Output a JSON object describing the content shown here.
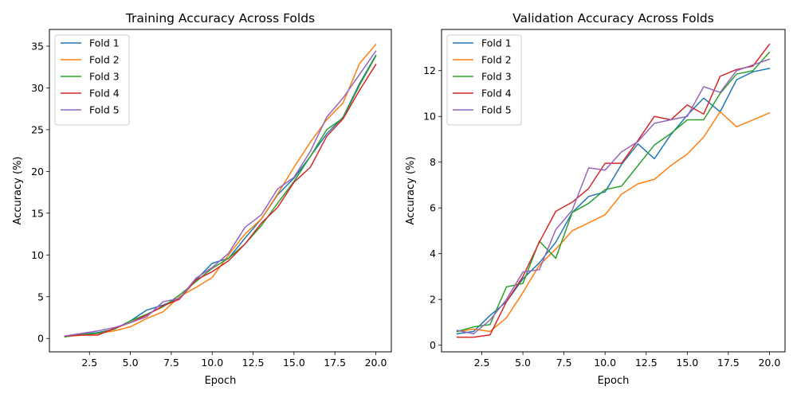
{
  "chart_data": [
    {
      "type": "line",
      "title": "Training Accuracy Across Folds",
      "xlabel": "Epoch",
      "ylabel": "Accuracy (%)",
      "xlim": [
        0.05,
        20.95
      ],
      "ylim": [
        -1.6,
        37.0
      ],
      "xticks": [
        2.5,
        5.0,
        7.5,
        10.0,
        12.5,
        15.0,
        17.5,
        20.0
      ],
      "xtick_labels": [
        "2.5",
        "5.0",
        "7.5",
        "10.0",
        "12.5",
        "15.0",
        "17.5",
        "20.0"
      ],
      "yticks": [
        0,
        5,
        10,
        15,
        20,
        25,
        30,
        35
      ],
      "ytick_labels": [
        "0",
        "5",
        "10",
        "15",
        "20",
        "25",
        "30",
        "35"
      ],
      "legend_position": "upper left",
      "grid": false,
      "x": [
        1,
        2,
        3,
        4,
        5,
        6,
        7,
        8,
        9,
        10,
        11,
        12,
        13,
        14,
        15,
        16,
        17,
        18,
        19,
        20
      ],
      "series": [
        {
          "name": "Fold 1",
          "color": "#1f77b4",
          "values": [
            0.2,
            0.5,
            0.7,
            1.1,
            2.1,
            3.4,
            4.0,
            4.8,
            7.0,
            9.0,
            9.6,
            12.0,
            14.3,
            17.2,
            19.2,
            21.8,
            24.5,
            26.5,
            30.5,
            33.9
          ]
        },
        {
          "name": "Fold 2",
          "color": "#ff7f0e",
          "values": [
            0.2,
            0.4,
            0.6,
            0.9,
            1.4,
            2.4,
            3.2,
            5.0,
            6.1,
            7.3,
            10.0,
            12.5,
            14.3,
            17.3,
            20.5,
            23.5,
            26.2,
            28.2,
            32.9,
            35.2
          ]
        },
        {
          "name": "Fold 3",
          "color": "#2ca02c",
          "values": [
            0.2,
            0.5,
            0.6,
            1.1,
            2.1,
            2.9,
            3.8,
            5.2,
            6.8,
            8.4,
            9.6,
            11.3,
            13.5,
            16.2,
            18.8,
            21.8,
            25.0,
            26.4,
            30.3,
            33.8
          ]
        },
        {
          "name": "Fold 4",
          "color": "#d62728",
          "values": [
            0.3,
            0.4,
            0.4,
            1.2,
            1.9,
            2.8,
            3.9,
            4.7,
            7.0,
            8.0,
            9.3,
            11.3,
            13.8,
            15.7,
            18.7,
            20.5,
            24.2,
            26.3,
            29.7,
            32.8
          ]
        },
        {
          "name": "Fold 5",
          "color": "#9467bd",
          "values": [
            0.3,
            0.6,
            0.9,
            1.3,
            1.9,
            2.6,
            4.4,
            4.8,
            7.2,
            8.5,
            10.2,
            13.3,
            14.8,
            17.9,
            19.3,
            22.4,
            26.5,
            28.8,
            31.6,
            34.4
          ]
        }
      ]
    },
    {
      "type": "line",
      "title": "Validation Accuracy Across Folds",
      "xlabel": "Epoch",
      "ylabel": "Accuracy (%)",
      "xlim": [
        0.05,
        20.95
      ],
      "ylim": [
        -0.29,
        13.8
      ],
      "xticks": [
        2.5,
        5.0,
        7.5,
        10.0,
        12.5,
        15.0,
        17.5,
        20.0
      ],
      "xtick_labels": [
        "2.5",
        "5.0",
        "7.5",
        "10.0",
        "12.5",
        "15.0",
        "17.5",
        "20.0"
      ],
      "yticks": [
        0,
        2,
        4,
        6,
        8,
        10,
        12
      ],
      "ytick_labels": [
        "0",
        "2",
        "4",
        "6",
        "8",
        "10",
        "12"
      ],
      "legend_position": "upper left",
      "grid": false,
      "x": [
        1,
        2,
        3,
        4,
        5,
        6,
        7,
        8,
        9,
        10,
        11,
        12,
        13,
        14,
        15,
        16,
        17,
        18,
        19,
        20
      ],
      "series": [
        {
          "name": "Fold 1",
          "color": "#1f77b4",
          "values": [
            0.5,
            0.6,
            1.3,
            1.9,
            2.9,
            3.6,
            4.5,
            5.8,
            6.5,
            6.7,
            7.9,
            8.8,
            8.15,
            9.2,
            10.05,
            10.8,
            10.2,
            11.6,
            11.95,
            12.1
          ]
        },
        {
          "name": "Fold 2",
          "color": "#ff7f0e",
          "values": [
            0.6,
            0.7,
            0.6,
            1.2,
            2.3,
            3.5,
            4.2,
            5.0,
            5.35,
            5.7,
            6.6,
            7.05,
            7.25,
            7.85,
            8.35,
            9.1,
            10.2,
            9.55,
            9.85,
            10.15
          ]
        },
        {
          "name": "Fold 3",
          "color": "#2ca02c",
          "values": [
            0.6,
            0.8,
            0.9,
            2.55,
            2.7,
            4.55,
            3.8,
            5.8,
            6.2,
            6.8,
            6.95,
            7.85,
            8.75,
            9.25,
            9.85,
            9.85,
            11.0,
            11.85,
            12.0,
            12.8
          ]
        },
        {
          "name": "Fold 4",
          "color": "#d62728",
          "values": [
            0.35,
            0.35,
            0.45,
            1.9,
            3.0,
            4.5,
            5.85,
            6.25,
            6.85,
            7.95,
            7.95,
            8.95,
            10.0,
            9.85,
            10.5,
            10.1,
            11.75,
            12.05,
            12.2,
            13.15
          ]
        },
        {
          "name": "Fold 5",
          "color": "#9467bd",
          "values": [
            0.65,
            0.5,
            1.1,
            2.0,
            3.2,
            3.3,
            5.05,
            5.9,
            7.75,
            7.65,
            8.45,
            8.9,
            9.7,
            9.85,
            10.0,
            11.3,
            11.05,
            12.0,
            12.25,
            12.5
          ]
        }
      ]
    }
  ]
}
